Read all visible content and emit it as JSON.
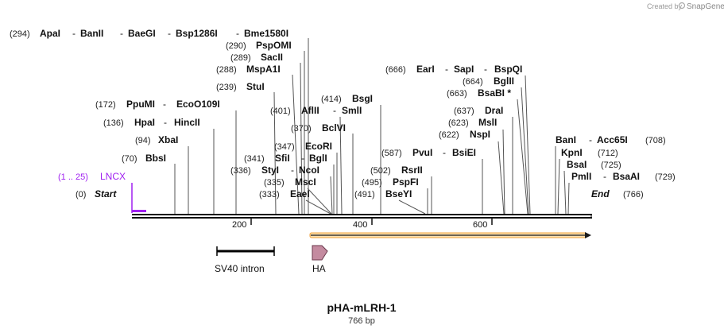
{
  "credit": {
    "text": "Created by",
    "brand": "SnapGene"
  },
  "map": {
    "title": "pHA-mLRH-1",
    "length_label": "766 bp",
    "start_label": "Start",
    "start_pos": "(0)",
    "end_label": "End",
    "end_pos": "(766)",
    "length": 766,
    "ticks": [
      {
        "value": 200,
        "label": "200"
      },
      {
        "value": 400,
        "label": "400"
      },
      {
        "value": 600,
        "label": "600"
      }
    ]
  },
  "sites": [
    {
      "pos": "(294)",
      "names": [
        "ApaI",
        "BanII",
        "BaeGI",
        "Bsp1286I",
        "Bme1580I"
      ]
    },
    {
      "pos": "(290)",
      "names": [
        "PspOMI"
      ]
    },
    {
      "pos": "(289)",
      "names": [
        "SacII"
      ]
    },
    {
      "pos": "(288)",
      "names": [
        "MspA1I"
      ]
    },
    {
      "pos": "(239)",
      "names": [
        "StuI"
      ]
    },
    {
      "pos": "(172)",
      "names": [
        "PpuMI",
        "EcoO109I"
      ]
    },
    {
      "pos": "(136)",
      "names": [
        "HpaI",
        "HincII"
      ]
    },
    {
      "pos": "(94)",
      "names": [
        "XbaI"
      ]
    },
    {
      "pos": "(70)",
      "names": [
        "BbsI"
      ]
    },
    {
      "pos": "(401)",
      "names": [
        "AflII",
        "SmlI"
      ]
    },
    {
      "pos": "(414)",
      "names": [
        "BsgI"
      ]
    },
    {
      "pos": "(370)",
      "names": [
        "BclVI"
      ]
    },
    {
      "pos": "(347)",
      "names": [
        "EcoRI"
      ]
    },
    {
      "pos": "(341)",
      "names": [
        "SfiI",
        "BglI"
      ]
    },
    {
      "pos": "(336)",
      "names": [
        "StyI",
        "NcoI"
      ]
    },
    {
      "pos": "(335)",
      "names": [
        "MscI"
      ]
    },
    {
      "pos": "(333)",
      "names": [
        "EaeI"
      ]
    },
    {
      "pos": "(666)",
      "names": [
        "EarI",
        "SapI",
        "BspQI"
      ]
    },
    {
      "pos": "(664)",
      "names": [
        "BglII"
      ]
    },
    {
      "pos": "(663)",
      "names": [
        "BsaBI *"
      ]
    },
    {
      "pos": "(637)",
      "names": [
        "DraI"
      ]
    },
    {
      "pos": "(623)",
      "names": [
        "MslI"
      ]
    },
    {
      "pos": "(622)",
      "names": [
        "NspI"
      ]
    },
    {
      "pos": "(587)",
      "names": [
        "PvuI",
        "BsiEI"
      ]
    },
    {
      "pos": "(502)",
      "names": [
        "RsrII"
      ]
    },
    {
      "pos": "(495)",
      "names": [
        "PspFI"
      ]
    },
    {
      "pos": "(491)",
      "names": [
        "BseYI"
      ]
    },
    {
      "pos": "(708)",
      "names": [
        "BanI",
        "Acc65I"
      ]
    },
    {
      "pos": "(712)",
      "names": [
        "KpnI"
      ]
    },
    {
      "pos": "(725)",
      "names": [
        "BsaI"
      ]
    },
    {
      "pos": "(729)",
      "names": [
        "PmlI",
        "BsaAI"
      ]
    }
  ],
  "features": {
    "lncx": {
      "range": "(1 .. 25)",
      "name": "LNCX",
      "color": "#a020f0"
    },
    "sv40": {
      "name": "SV40 intron"
    },
    "ha": {
      "name": "HA",
      "color": "#c48ba0"
    },
    "orf": {
      "color": "#f3a33a"
    }
  }
}
